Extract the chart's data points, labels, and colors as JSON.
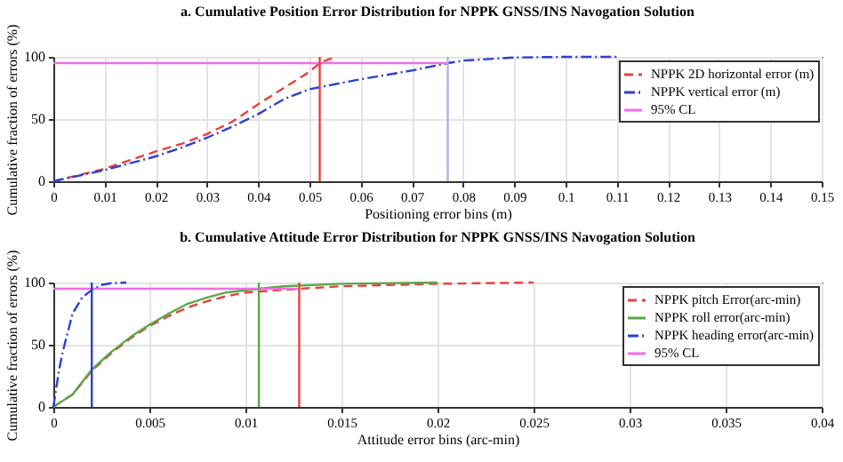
{
  "chart_data": [
    {
      "type": "line",
      "title": "a. Cumulative Position Error Distribution for NPPK GNSS/INS Navogation Solution",
      "xlabel": "Positioning error bins (m)",
      "ylabel": "Cumulative fraction of errors (%)",
      "xlim": [
        0,
        0.15
      ],
      "xticks": [
        0,
        0.01,
        0.02,
        0.03,
        0.04,
        0.05,
        0.06,
        0.07,
        0.08,
        0.09,
        0.1,
        0.11,
        0.12,
        0.13,
        0.14,
        0.15
      ],
      "ylim": [
        0,
        100
      ],
      "yticks": [
        0,
        50,
        100
      ],
      "grid": true,
      "legend": "top right",
      "series": [
        {
          "name": "NPPK 2D horizontal error (m)",
          "color": "#e8413c",
          "line_style": "dashed",
          "x": [
            0,
            0.005,
            0.01,
            0.015,
            0.02,
            0.025,
            0.03,
            0.035,
            0.04,
            0.045,
            0.05,
            0.052,
            0.055
          ],
          "values": [
            0,
            5,
            10,
            17,
            24,
            30,
            38,
            48,
            62,
            75,
            88,
            95,
            100
          ]
        },
        {
          "name": "NPPK vertical error (m)",
          "color": "#2b3fd6",
          "line_style": "dotted",
          "x": [
            0,
            0.01,
            0.02,
            0.025,
            0.03,
            0.035,
            0.04,
            0.045,
            0.05,
            0.055,
            0.06,
            0.07,
            0.077,
            0.08,
            0.09,
            0.1,
            0.11
          ],
          "values": [
            0,
            9,
            20,
            27,
            35,
            44,
            54,
            66,
            74,
            78,
            82,
            89,
            95,
            97,
            99.5,
            100,
            100
          ]
        },
        {
          "name": "95% CL",
          "color": "#f06ee6",
          "line_style": "solid",
          "x": [
            0,
            0.077
          ],
          "values": [
            95,
            95
          ]
        }
      ],
      "ref_lines": [
        {
          "axis": "x",
          "value": 0.052,
          "color": "#e8413c"
        },
        {
          "axis": "x",
          "value": 0.077,
          "color": "#a8b4ef"
        }
      ]
    },
    {
      "type": "line",
      "title": "b. Cumulative Attitude Error Distribution for NPPK GNSS/INS Navogation Solution",
      "xlabel": "Attitude error bins (arc-min)",
      "ylabel": "Cumulative fraction of errors (%)",
      "xlim": [
        0,
        0.04
      ],
      "xticks": [
        0,
        0.005,
        0.01,
        0.015,
        0.02,
        0.025,
        0.03,
        0.035,
        0.04
      ],
      "ylim": [
        0,
        100
      ],
      "yticks": [
        0,
        50,
        100
      ],
      "grid": true,
      "legend": "top right",
      "series": [
        {
          "name": "NPPK pitch Error(arc-min)",
          "color": "#e8413c",
          "line_style": "dashed",
          "x": [
            0,
            0.001,
            0.002,
            0.003,
            0.004,
            0.005,
            0.006,
            0.007,
            0.008,
            0.009,
            0.01,
            0.0128,
            0.015,
            0.02,
            0.025
          ],
          "values": [
            0,
            10,
            29,
            43,
            55,
            65,
            73,
            80,
            85,
            89,
            92,
            95,
            97,
            99,
            100
          ]
        },
        {
          "name": "NPPK roll error(arc-min)",
          "color": "#5aa84a",
          "line_style": "solid",
          "x": [
            0,
            0.001,
            0.002,
            0.003,
            0.004,
            0.005,
            0.006,
            0.007,
            0.008,
            0.009,
            0.0107,
            0.012,
            0.015,
            0.02
          ],
          "values": [
            0,
            10,
            30,
            44,
            56,
            66,
            75,
            83,
            88,
            92,
            95,
            97,
            99,
            100
          ]
        },
        {
          "name": "NPPK heading error(arc-min)",
          "color": "#2b3fd6",
          "line_style": "dotted",
          "x": [
            0,
            0.0003,
            0.0005,
            0.001,
            0.0015,
            0.002,
            0.0025,
            0.003,
            0.0038
          ],
          "values": [
            0,
            30,
            45,
            75,
            88,
            94,
            98,
            99.5,
            100
          ]
        },
        {
          "name": "95% CL",
          "color": "#f06ee6",
          "line_style": "solid",
          "x": [
            0,
            0.0128
          ],
          "values": [
            95,
            95
          ]
        }
      ],
      "ref_lines": [
        {
          "axis": "x",
          "value": 0.002,
          "color": "#2b3fd6"
        },
        {
          "axis": "x",
          "value": 0.0107,
          "color": "#5aa84a"
        },
        {
          "axis": "x",
          "value": 0.0128,
          "color": "#e8413c"
        }
      ]
    }
  ]
}
